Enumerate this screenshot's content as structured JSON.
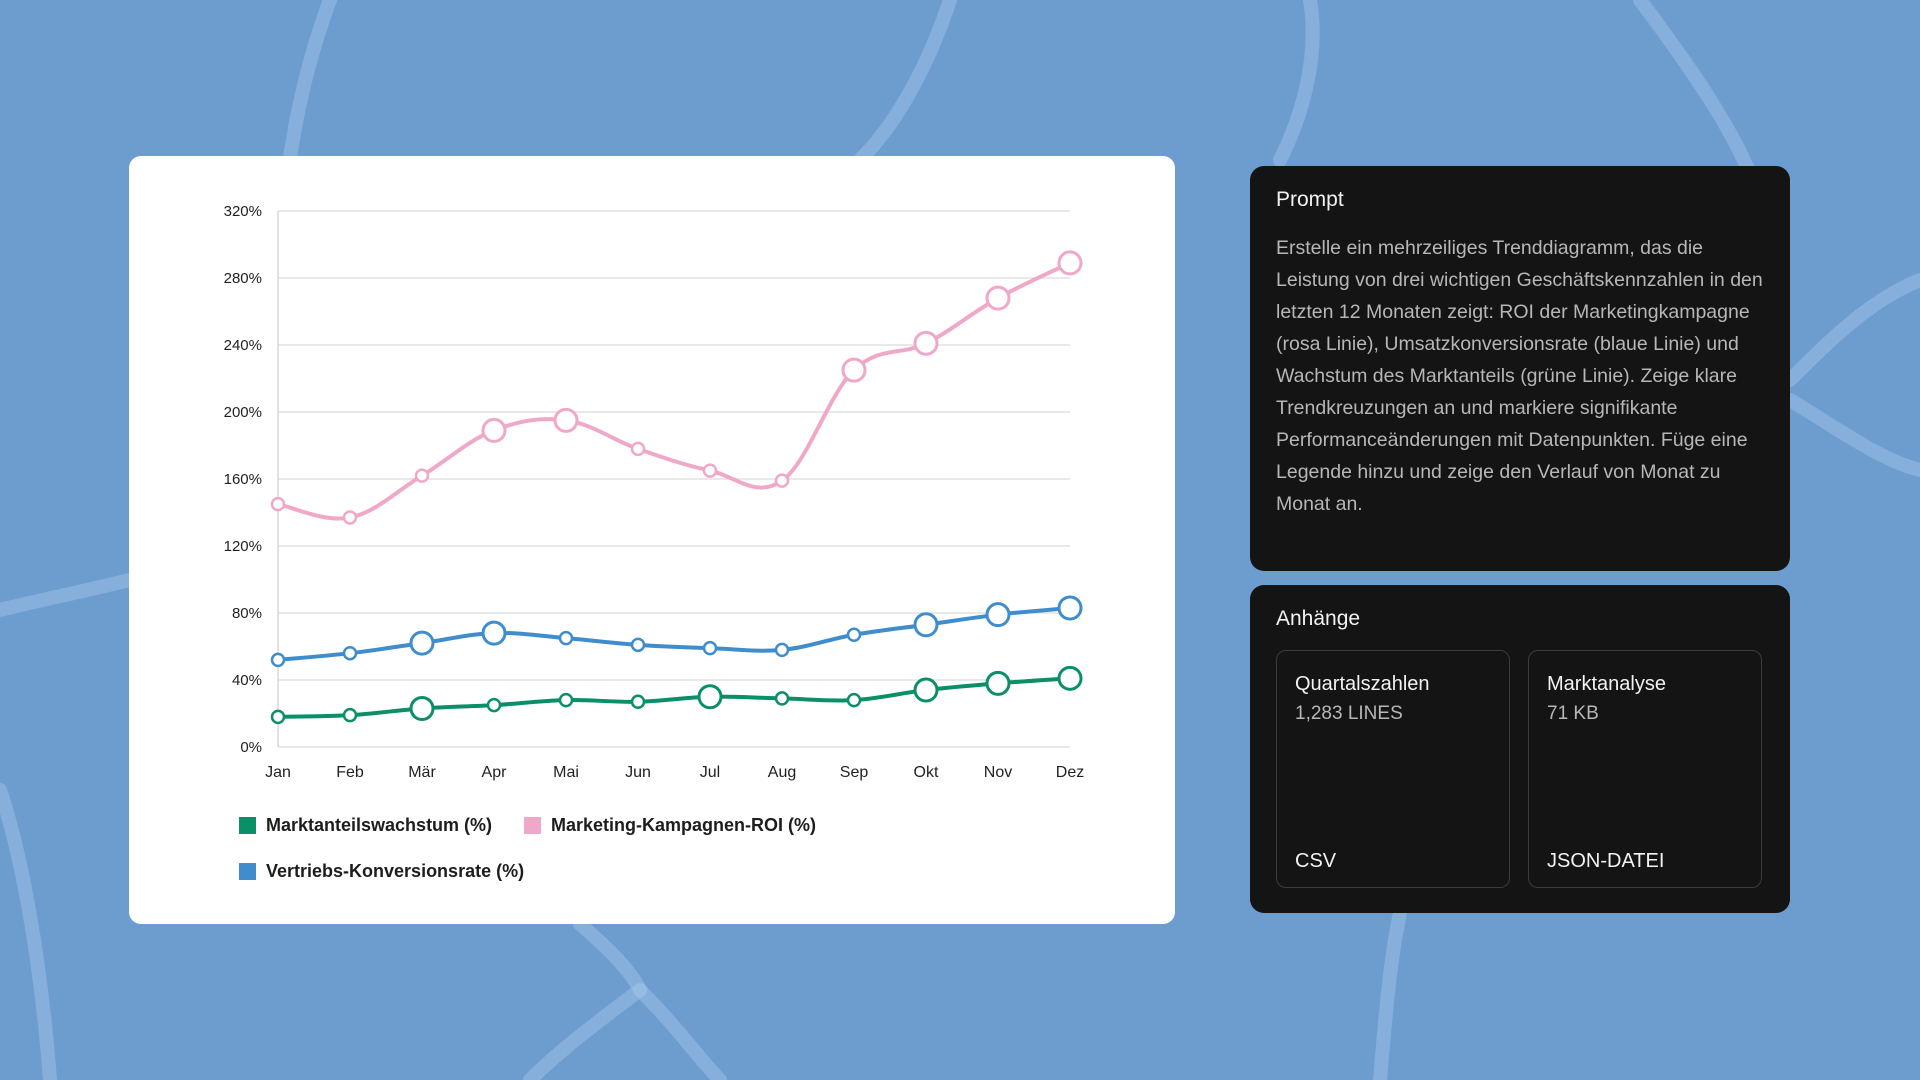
{
  "chart_data": {
    "type": "line",
    "categories": [
      "Jan",
      "Feb",
      "Mär",
      "Apr",
      "Mai",
      "Jun",
      "Jul",
      "Aug",
      "Sep",
      "Okt",
      "Nov",
      "Dez"
    ],
    "y_ticks": [
      "0%",
      "40%",
      "80%",
      "120%",
      "160%",
      "200%",
      "240%",
      "280%",
      "320%"
    ],
    "ylim": [
      0,
      320
    ],
    "grid": true,
    "legend_position": "bottom-left",
    "title": "",
    "xlabel": "",
    "ylabel": "",
    "series": [
      {
        "name": "Marketing-Kampagnen-ROI (%)",
        "color": "#f0a8c8",
        "values": [
          145,
          137,
          162,
          189,
          195,
          178,
          165,
          159,
          225,
          241,
          268,
          289
        ],
        "highlight": [
          false,
          false,
          false,
          true,
          true,
          false,
          false,
          false,
          true,
          true,
          true,
          true
        ]
      },
      {
        "name": "Vertriebs-Konversionsrate (%)",
        "color": "#3f8dcc",
        "values": [
          52,
          56,
          62,
          68,
          65,
          61,
          59,
          58,
          67,
          73,
          79,
          83
        ],
        "highlight": [
          false,
          false,
          true,
          true,
          false,
          false,
          false,
          false,
          false,
          true,
          true,
          true
        ]
      },
      {
        "name": "Marktanteilswachstum (%)",
        "color": "#0a8f68",
        "values": [
          18,
          19,
          23,
          25,
          28,
          27,
          30,
          29,
          28,
          34,
          38,
          41
        ],
        "highlight": [
          false,
          false,
          true,
          false,
          false,
          false,
          true,
          false,
          false,
          true,
          true,
          true
        ]
      }
    ],
    "legend": [
      {
        "label": "Marktanteilswachstum (%)",
        "color": "#0a8f68"
      },
      {
        "label": "Marketing-Kampagnen-ROI (%)",
        "color": "#f0a8c8"
      },
      {
        "label": "Vertriebs-Konversionsrate (%)",
        "color": "#3f8dcc"
      }
    ]
  },
  "prompt": {
    "title": "Prompt",
    "text": "Erstelle ein mehrzeiliges Trenddiagramm, das die Leistung von drei wichtigen Geschäftskennzahlen in den letzten 12 Monaten zeigt: ROI der Marketingkampagne (rosa Linie), Umsatzkonversionsrate (blaue Linie) und Wachstum des Marktanteils (grüne Linie). Zeige klare Trendkreuzungen an und markiere signifikante Performanceänderungen mit Datenpunkten. Füge eine Legende hinzu und zeige den Verlauf von Monat zu Monat an."
  },
  "attachments": {
    "title": "Anhänge",
    "items": [
      {
        "name": "Quartalszahlen",
        "size": "1,283 LINES",
        "type": "CSV"
      },
      {
        "name": "Marktanalyse",
        "size": "71 KB",
        "type": "JSON-DATEI"
      }
    ]
  },
  "colors": {
    "background": "#6d9dcf",
    "panel": "#141414"
  }
}
